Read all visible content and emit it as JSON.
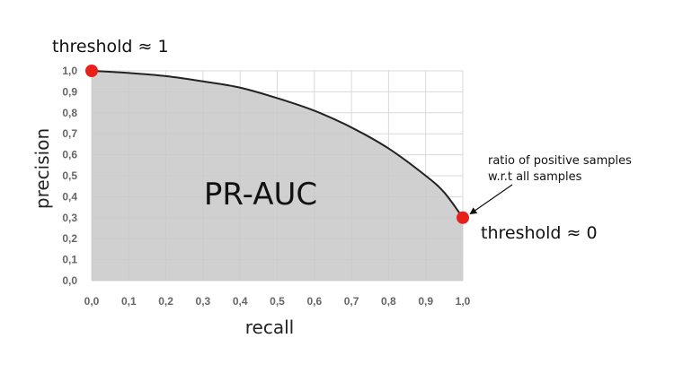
{
  "chart_data": {
    "type": "area",
    "xlabel": "recall",
    "ylabel": "precision",
    "xlim": [
      0,
      1
    ],
    "ylim": [
      0,
      1
    ],
    "x_ticks": [
      "0,0",
      "0,1",
      "0,2",
      "0,3",
      "0,4",
      "0,5",
      "0,6",
      "0,7",
      "0,8",
      "0,9",
      "1,0"
    ],
    "y_ticks": [
      "0,0",
      "0,1",
      "0,2",
      "0,3",
      "0,4",
      "0,5",
      "0,6",
      "0,7",
      "0,8",
      "0,9",
      "1,0"
    ],
    "grid": true,
    "series": [
      {
        "x": [
          0.0,
          0.1,
          0.2,
          0.3,
          0.4,
          0.5,
          0.6,
          0.7,
          0.8,
          0.9,
          0.95,
          1.0
        ],
        "y": [
          1.0,
          0.99,
          0.975,
          0.95,
          0.92,
          0.87,
          0.81,
          0.73,
          0.63,
          0.5,
          0.42,
          0.3
        ]
      }
    ],
    "area_label": "PR-AUC",
    "points": [
      {
        "x": 0.0,
        "y": 1.0,
        "label": "threshold ≈ 1"
      },
      {
        "x": 1.0,
        "y": 0.3,
        "label": "threshold ≈ 0"
      }
    ],
    "annotation": {
      "lines": [
        "ratio of positive samples",
        "w.r.t all samples"
      ],
      "target_point": 1
    },
    "colors": {
      "fill": "#c8c8c8",
      "curve": "#222222",
      "grid": "#d9d9d9",
      "point": "#e8201a"
    }
  }
}
